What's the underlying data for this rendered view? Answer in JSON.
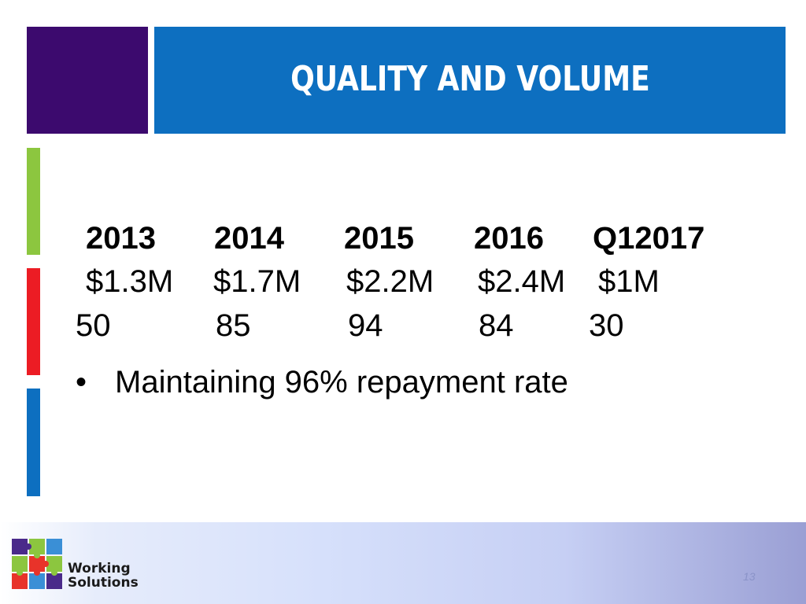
{
  "title": "Quality and Volume",
  "table": {
    "years": [
      "2013",
      "2014",
      "2015",
      "2016",
      "Q12017"
    ],
    "amounts": [
      "$1.3M",
      "$1.7M",
      "$2.2M",
      "$2.4M",
      "$1M"
    ],
    "counts": [
      "50",
      "85",
      "94",
      "84",
      "30"
    ]
  },
  "bullets": [
    {
      "marker": "•",
      "text": "Maintaining 96% repayment rate"
    }
  ],
  "logo": {
    "line1": "Working",
    "line2": "Solutions"
  },
  "page_number": "13",
  "colors": {
    "title_bar": "#0d6fc0",
    "purple_block": "#3c0a6e",
    "accent_green": "#8cc63f",
    "accent_red": "#ec1c24",
    "accent_blue": "#0d6fc0"
  }
}
